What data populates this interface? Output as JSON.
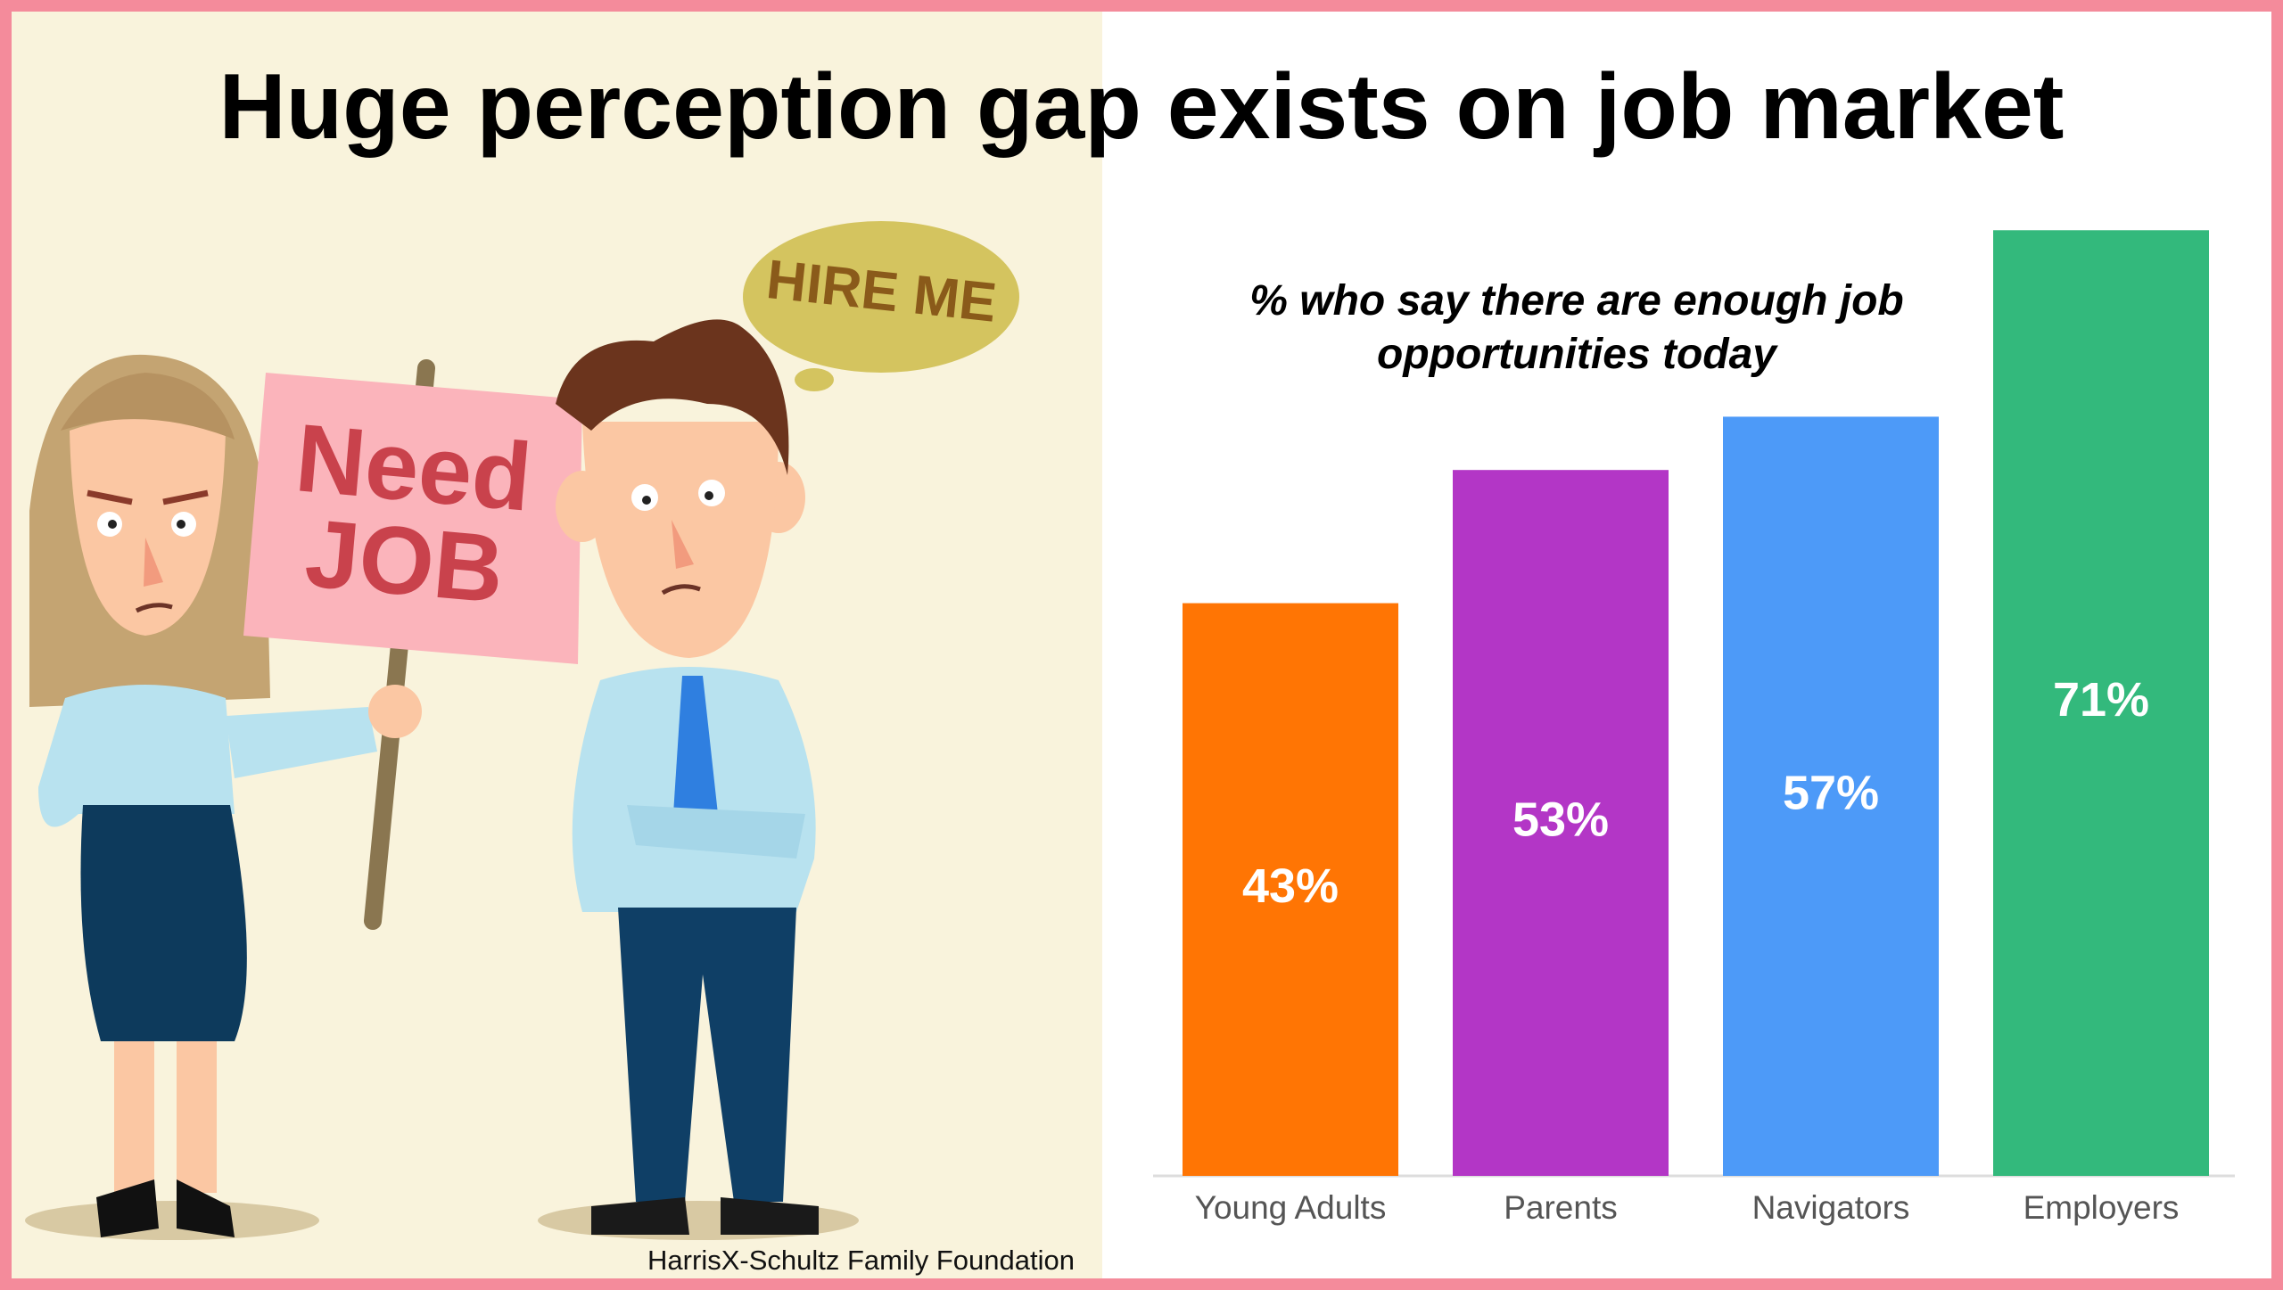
{
  "chart_data": {
    "type": "bar",
    "title": "Huge perception gap exists on job market",
    "subtitle": "% who say there are enough job opportunities today",
    "categories": [
      "Young Adults",
      "Parents",
      "Navigators",
      "Employers"
    ],
    "values": [
      43,
      53,
      57,
      71
    ],
    "value_labels": [
      "43%",
      "53%",
      "57%",
      "71%"
    ],
    "colors": [
      "#ff7504",
      "#b336c6",
      "#4d9af8",
      "#33b97c"
    ],
    "source": "HarrisX-Schultz Family Foundation"
  },
  "illustration": {
    "sign": [
      "Need",
      "JOB"
    ],
    "bubble": "HIRE ME"
  }
}
